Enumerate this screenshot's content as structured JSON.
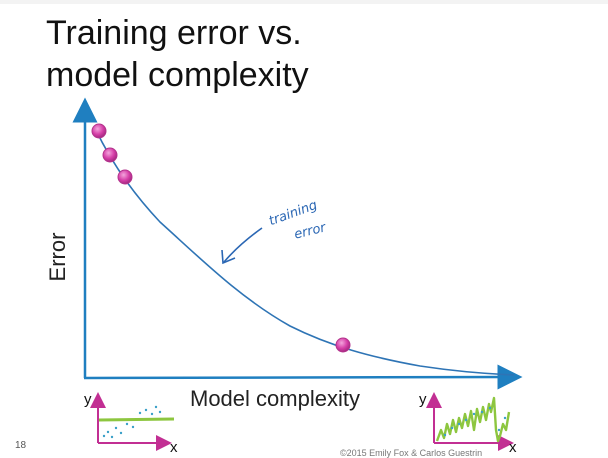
{
  "slide": {
    "title_line1": "Training error vs.",
    "title_line2": "model complexity",
    "page_number": "18",
    "copyright": "©2015 Emily Fox & Carlos Guestrin"
  },
  "axes": {
    "ylabel": "Error",
    "xlabel": "Model complexity"
  },
  "annotation": {
    "line1": "training",
    "line2": "error"
  },
  "insets": {
    "left": {
      "y_label": "y",
      "x_label": "x"
    },
    "right": {
      "y_label": "y",
      "x_label": "x"
    }
  },
  "colors": {
    "axis": "#1f7fc0",
    "curve": "#2e74b5",
    "points": "#d63fa8",
    "fit_green": "#8dc63f",
    "inset_axis": "#c22f93",
    "data_dots": "#3aa0c8"
  }
}
